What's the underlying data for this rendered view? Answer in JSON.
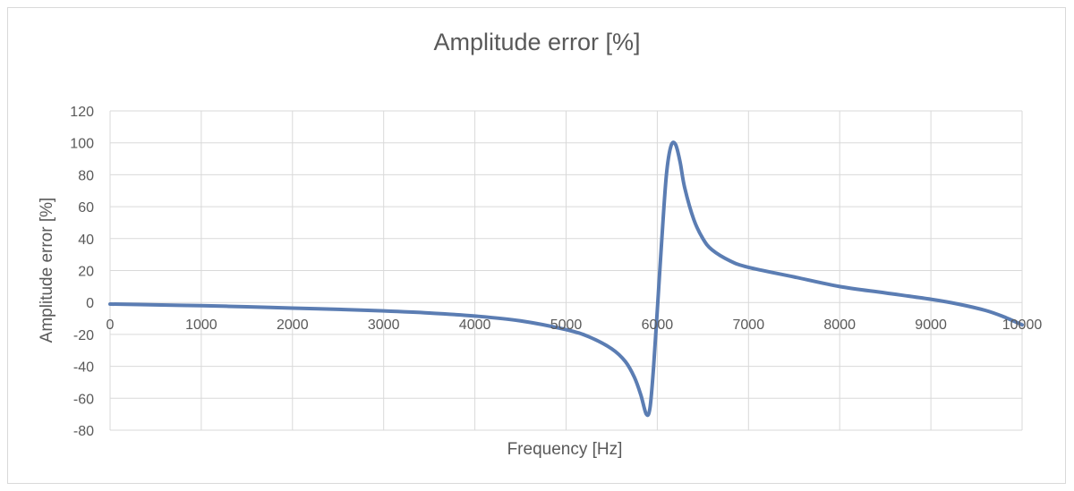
{
  "chart_data": {
    "type": "line",
    "title": "Amplitude error [%]",
    "xlabel": "Frequency [Hz]",
    "ylabel": "Amplitude error [%]",
    "xlim": [
      0,
      10000
    ],
    "ylim": [
      -80,
      120
    ],
    "x_ticks": [
      "0",
      "1000",
      "2000",
      "3000",
      "4000",
      "5000",
      "6000",
      "7000",
      "8000",
      "9000",
      "10000"
    ],
    "y_ticks": [
      "120",
      "100",
      "80",
      "60",
      "40",
      "20",
      "0",
      "-20",
      "-40",
      "-60",
      "-80"
    ],
    "grid": true,
    "legend": false,
    "series_color": "#5b7db3",
    "series": [
      {
        "x": [
          0,
          500,
          1000,
          1500,
          2000,
          2500,
          3000,
          3500,
          4000,
          4500,
          5000,
          5250,
          5500,
          5650,
          5750,
          5820,
          5880,
          5920,
          5960,
          6000,
          6050,
          6100,
          6150,
          6200,
          6250,
          6300,
          6400,
          6500,
          6600,
          6800,
          7000,
          7500,
          8000,
          8500,
          9000,
          9300,
          9600,
          9800,
          10000
        ],
        "y": [
          -1,
          -1.5,
          -2,
          -2.7,
          -3.5,
          -4.3,
          -5.3,
          -6.6,
          -8.5,
          -11.5,
          -17,
          -21.5,
          -29,
          -37,
          -47,
          -58,
          -70,
          -66,
          -40,
          -5,
          40,
          80,
          98,
          99,
          88,
          72,
          52,
          40,
          33,
          26,
          22,
          16,
          10,
          6,
          2,
          -1,
          -5,
          -9,
          -14
        ]
      }
    ]
  }
}
